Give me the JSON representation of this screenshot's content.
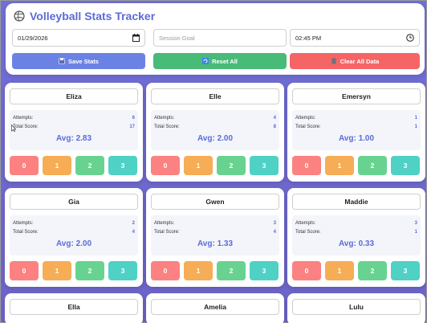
{
  "app": {
    "title": "Volleyball Stats Tracker"
  },
  "session": {
    "date_value": "01/29/2026",
    "goal_placeholder": "Session Goal",
    "time_value": "02:45 PM"
  },
  "actions": {
    "save_label": "Save Stats",
    "reset_label": "Reset All",
    "clear_label": "Clear All Data"
  },
  "labels": {
    "attempts": "Attempts:",
    "total_score": "Total Score:"
  },
  "score_buttons": [
    "0",
    "1",
    "2",
    "3"
  ],
  "players": [
    {
      "name": "Eliza",
      "attempts": "6",
      "total": "17",
      "avg": "Avg: 2.83"
    },
    {
      "name": "Elle",
      "attempts": "4",
      "total": "8",
      "avg": "Avg: 2.00"
    },
    {
      "name": "Emersyn",
      "attempts": "1",
      "total": "1",
      "avg": "Avg: 1.00"
    },
    {
      "name": "Gia",
      "attempts": "2",
      "total": "4",
      "avg": "Avg: 2.00"
    },
    {
      "name": "Gwen",
      "attempts": "3",
      "total": "4",
      "avg": "Avg: 1.33"
    },
    {
      "name": "Maddie",
      "attempts": "3",
      "total": "1",
      "avg": "Avg: 0.33"
    },
    {
      "name": "Ella"
    },
    {
      "name": "Amelia"
    },
    {
      "name": "Lulu"
    }
  ],
  "colors": {
    "background": "#6f6fd6",
    "accent": "#5b6bd8",
    "save": "#6b82e5",
    "reset": "#48bb78",
    "clear": "#f56565",
    "score0": "#fc8181",
    "score1": "#f6ad55",
    "score2": "#68d391",
    "score3": "#4fd1c5"
  }
}
